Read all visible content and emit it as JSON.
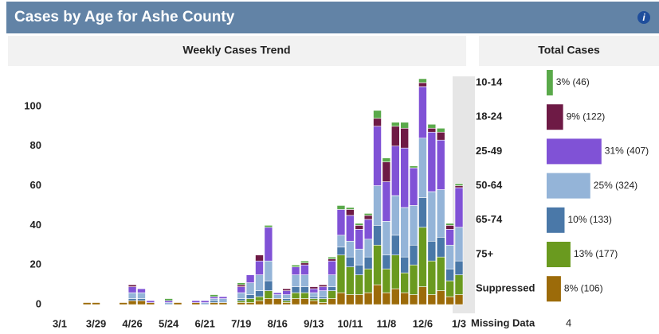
{
  "header": {
    "title": "Cases by Age for Ashe County",
    "icon": "i"
  },
  "chart_data": [
    {
      "type": "stacked_bar",
      "title": "Weekly Cases Trend",
      "categories": [
        "3/1",
        null,
        null,
        null,
        "3/29",
        null,
        null,
        null,
        "4/26",
        null,
        null,
        null,
        "5/24",
        null,
        null,
        null,
        "6/21",
        null,
        null,
        null,
        "7/19",
        null,
        null,
        null,
        "8/16",
        null,
        null,
        null,
        "9/13",
        null,
        null,
        null,
        "10/11",
        null,
        null,
        null,
        "11/8",
        null,
        null,
        null,
        "12/6",
        null,
        null,
        null,
        "1/3"
      ],
      "ylim": [
        0,
        120
      ],
      "yticks": [
        0,
        20,
        40,
        60,
        80,
        100
      ],
      "grid": false,
      "series": [
        {
          "name": "10-14",
          "color": "#5aa94a",
          "values": [
            0,
            0,
            0,
            0,
            0,
            0,
            0,
            0,
            0,
            0,
            0,
            0,
            1,
            0,
            0,
            0,
            0,
            1,
            0,
            0,
            1,
            0,
            0,
            1,
            0,
            0,
            1,
            1,
            0,
            0,
            1,
            2,
            1,
            1,
            1,
            4,
            2,
            2,
            3,
            1,
            2,
            2,
            2,
            1,
            1
          ]
        },
        {
          "name": "18-24",
          "color": "#6e1a45",
          "values": [
            0,
            0,
            0,
            0,
            0,
            0,
            0,
            0,
            1,
            0,
            0,
            0,
            0,
            0,
            0,
            0,
            0,
            0,
            0,
            0,
            1,
            0,
            3,
            0,
            0,
            1,
            0,
            1,
            1,
            1,
            1,
            0,
            3,
            2,
            2,
            4,
            10,
            10,
            10,
            0,
            2,
            2,
            4,
            2,
            1
          ]
        },
        {
          "name": "25-49",
          "color": "#8052d6",
          "values": [
            0,
            0,
            0,
            0,
            0,
            0,
            0,
            0,
            3,
            2,
            1,
            0,
            1,
            0,
            0,
            1,
            1,
            1,
            1,
            0,
            3,
            4,
            7,
            17,
            1,
            2,
            4,
            5,
            2,
            2,
            7,
            13,
            13,
            10,
            10,
            30,
            20,
            25,
            30,
            19,
            26,
            30,
            25,
            8,
            20
          ]
        },
        {
          "name": "50-64",
          "color": "#94b4d8",
          "values": [
            0,
            0,
            0,
            0,
            0,
            0,
            0,
            0,
            3,
            3,
            0,
            0,
            1,
            0,
            0,
            0,
            1,
            1,
            2,
            0,
            3,
            6,
            8,
            10,
            2,
            2,
            6,
            6,
            2,
            3,
            6,
            6,
            8,
            8,
            9,
            20,
            17,
            20,
            25,
            20,
            30,
            25,
            24,
            12,
            17
          ]
        },
        {
          "name": "65-74",
          "color": "#4a78a8",
          "values": [
            0,
            0,
            0,
            0,
            0,
            0,
            0,
            0,
            1,
            1,
            0,
            0,
            0,
            0,
            0,
            0,
            0,
            1,
            0,
            0,
            1,
            2,
            3,
            5,
            0,
            1,
            3,
            3,
            1,
            1,
            2,
            4,
            5,
            5,
            6,
            10,
            7,
            10,
            8,
            10,
            15,
            10,
            10,
            6,
            7
          ]
        },
        {
          "name": "75+",
          "color": "#6a9a1f",
          "values": [
            0,
            0,
            0,
            0,
            0,
            0,
            0,
            0,
            0,
            0,
            0,
            0,
            0,
            0,
            0,
            0,
            0,
            0,
            0,
            0,
            1,
            2,
            2,
            4,
            0,
            1,
            3,
            3,
            1,
            2,
            4,
            19,
            14,
            10,
            12,
            20,
            12,
            17,
            10,
            15,
            30,
            17,
            17,
            8,
            10
          ]
        },
        {
          "name": "Suppressed",
          "color": "#9c6b09",
          "values": [
            0,
            0,
            0,
            1,
            1,
            0,
            0,
            1,
            2,
            2,
            1,
            0,
            0,
            1,
            0,
            1,
            0,
            1,
            1,
            0,
            1,
            1,
            2,
            3,
            3,
            1,
            3,
            3,
            2,
            1,
            3,
            6,
            5,
            5,
            6,
            10,
            6,
            8,
            6,
            5,
            9,
            5,
            7,
            4,
            5
          ]
        }
      ]
    },
    {
      "type": "hbar",
      "title": "Total Cases",
      "categories": [
        "10-14",
        "18-24",
        "25-49",
        "50-64",
        "65-74",
        "75+",
        "Suppressed"
      ],
      "values": [
        46,
        122,
        407,
        324,
        133,
        177,
        106
      ],
      "value_labels": [
        "3% (46)",
        "9% (122)",
        "31% (407)",
        "25% (324)",
        "10% (133)",
        "13% (177)",
        "8% (106)"
      ],
      "colors": [
        "#5aa94a",
        "#6e1a45",
        "#8052d6",
        "#94b4d8",
        "#4a78a8",
        "#6a9a1f",
        "#9c6b09"
      ],
      "xlim": [
        0,
        420
      ],
      "missing_label": "Missing Data",
      "missing_value": 4
    }
  ]
}
